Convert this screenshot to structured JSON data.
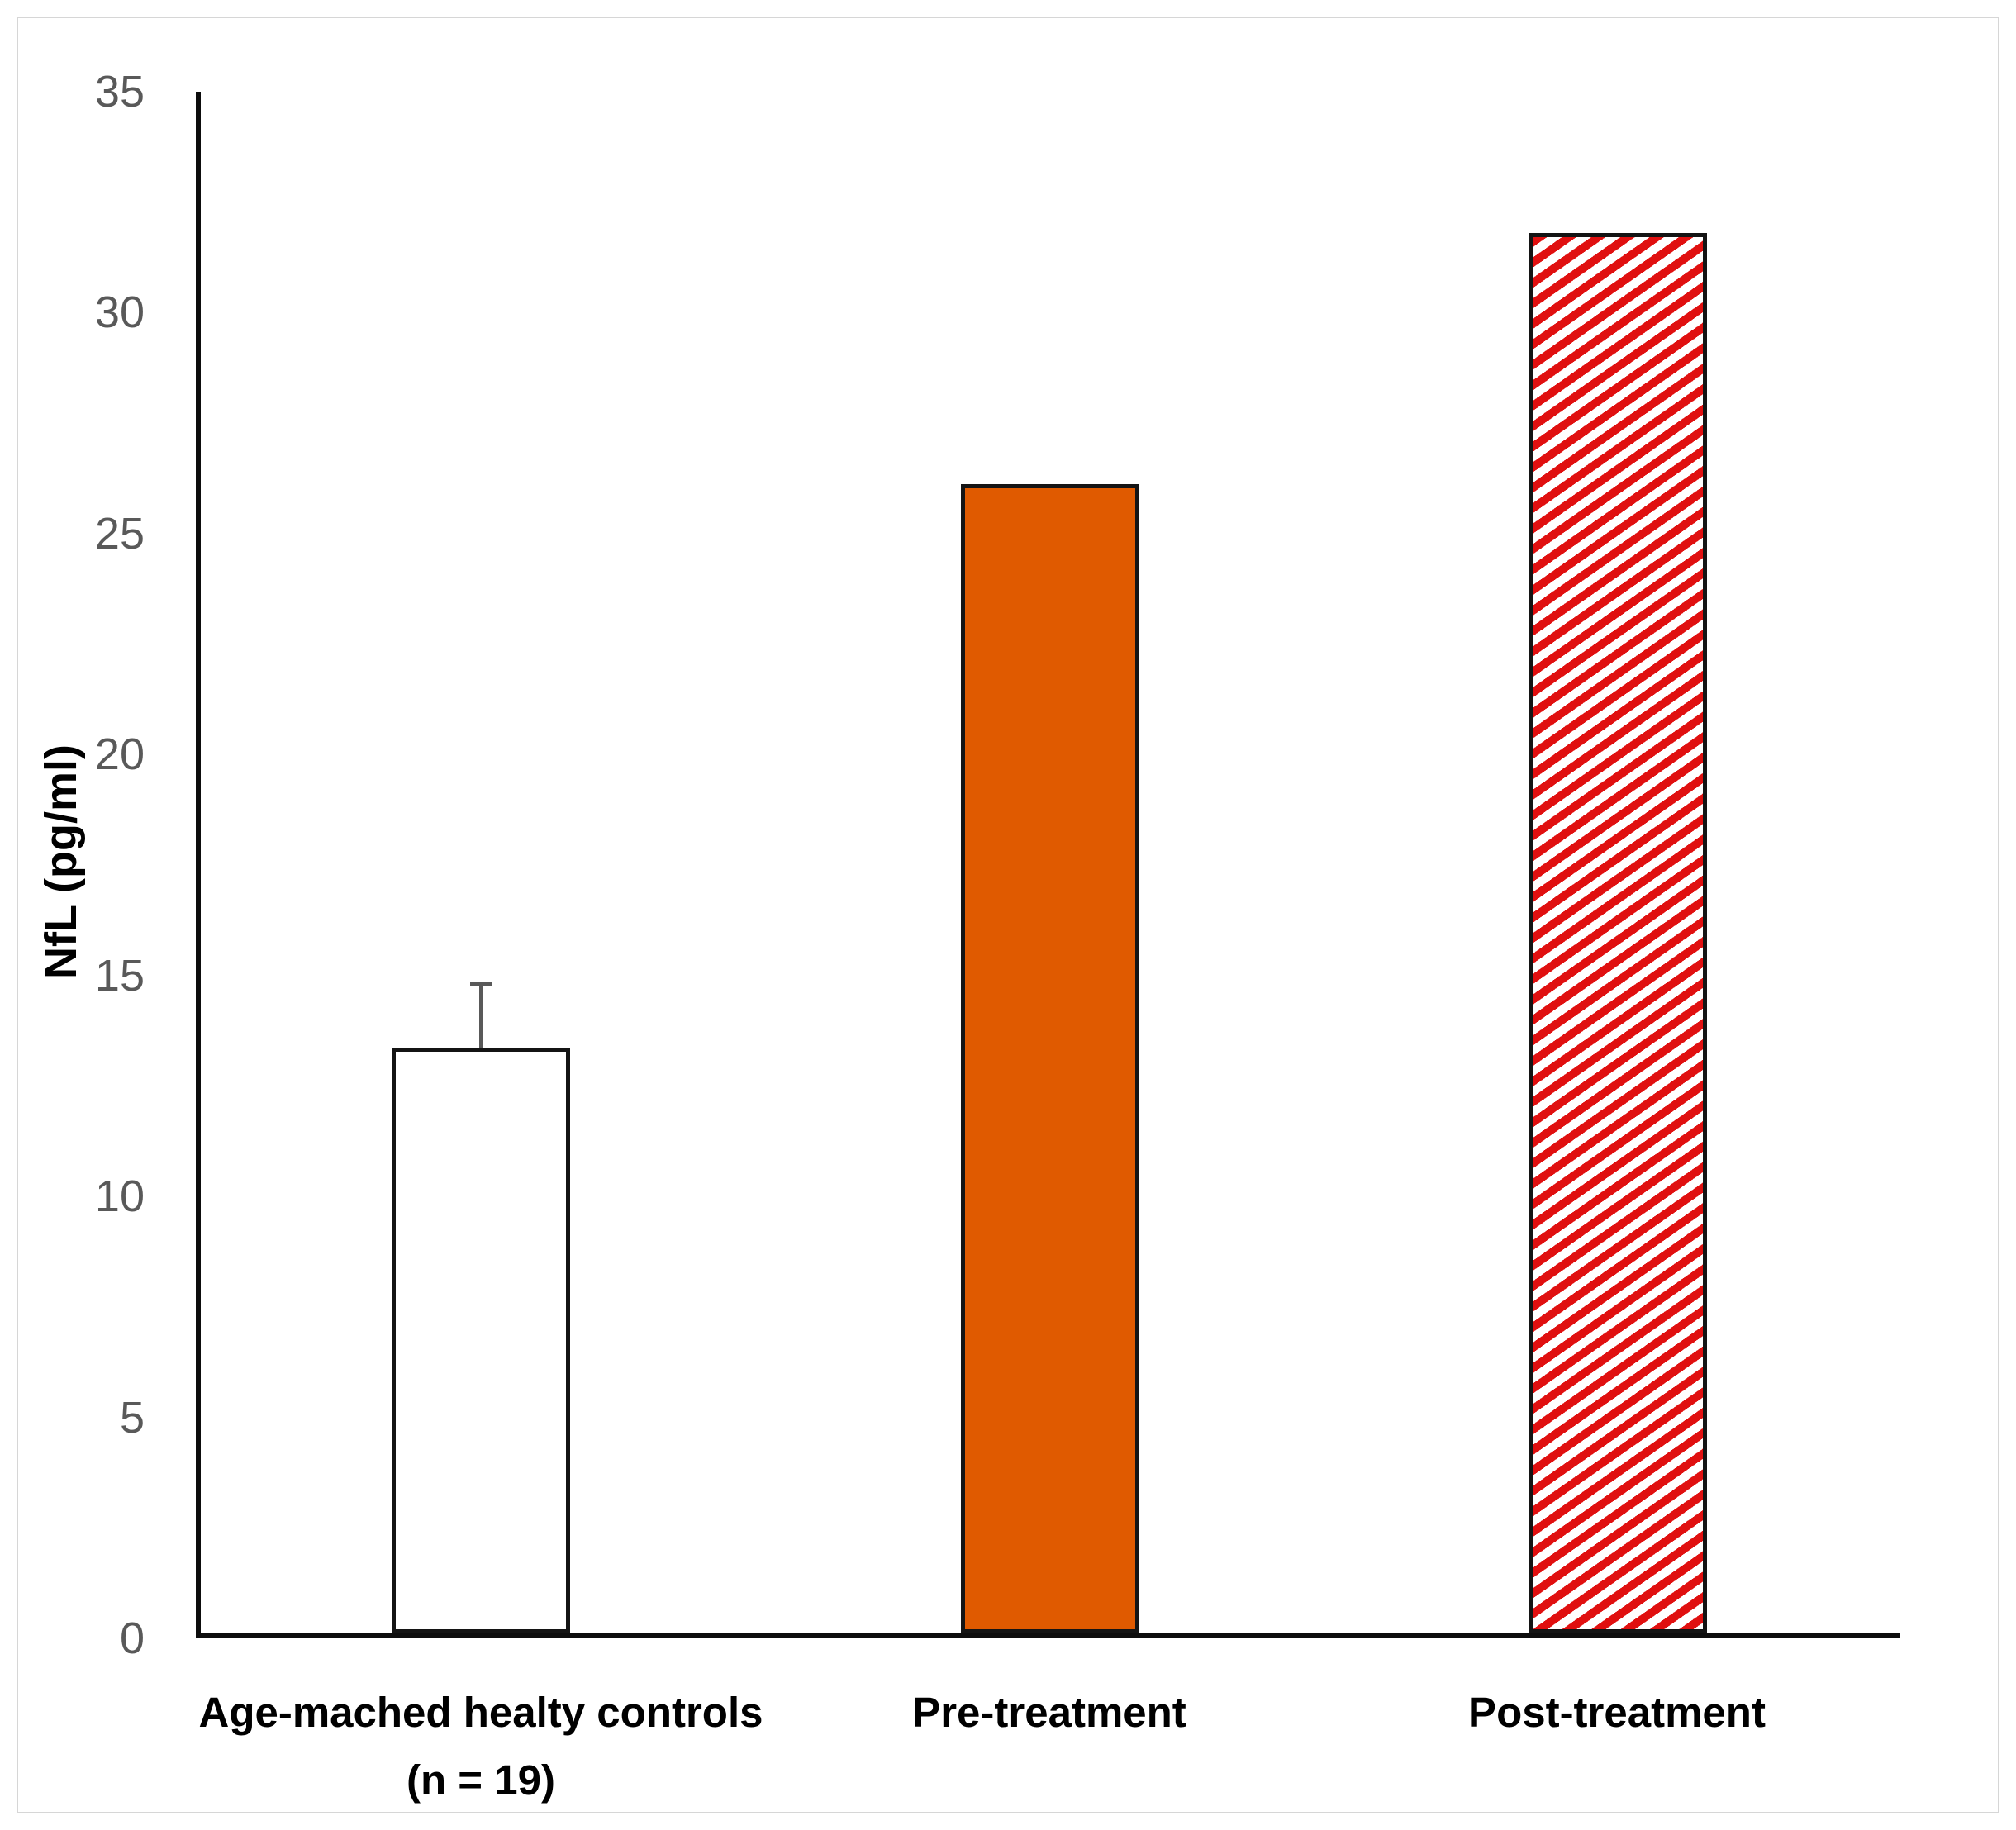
{
  "chart_data": {
    "type": "bar",
    "title": "",
    "xlabel": "",
    "ylabel": "NfL (pg/ml)",
    "ylim": [
      0,
      35
    ],
    "yticks": [
      0,
      5,
      10,
      15,
      20,
      25,
      30,
      35
    ],
    "grid": false,
    "legend": null,
    "categories": [
      "Age-mached healty controls\n(n = 19)",
      "Pre-treatment",
      "Post-treatment"
    ],
    "values": [
      13.3,
      26.1,
      31.8
    ],
    "error_bars": [
      {
        "index": 0,
        "plus": 1.5
      }
    ],
    "bar_styles": [
      {
        "pattern": "solid",
        "fill": "#ffffff",
        "border": "#141414"
      },
      {
        "pattern": "solid",
        "fill": "#e05a00",
        "border": "#141414"
      },
      {
        "pattern": "diagonal-stripes",
        "fill": "#e01010",
        "pattern_bg": "#ffffff",
        "border": "#141414"
      }
    ],
    "colors": {
      "axis_line": "#0d0d0d",
      "tick_label": "#595959",
      "error_bar": "#595959",
      "frame_border": "#d6d6d6",
      "background": "#ffffff"
    }
  }
}
